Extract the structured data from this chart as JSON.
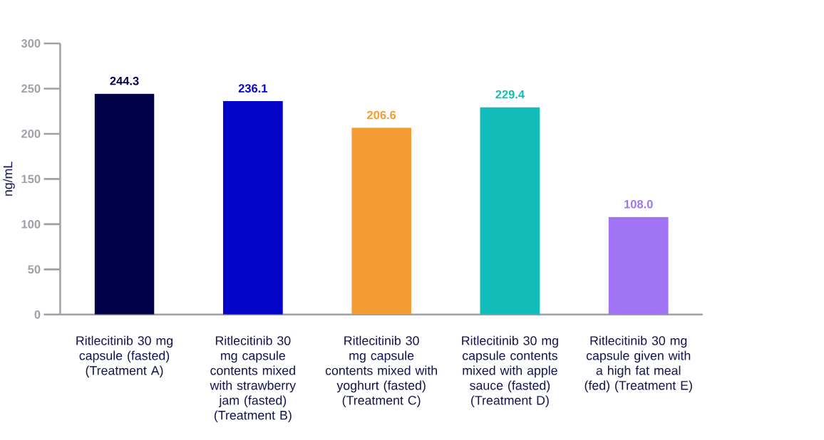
{
  "chart_data": {
    "type": "bar",
    "ylabel": "ng/mL",
    "categories": [
      "Ritlecitinib 30 mg capsule (fasted) (Treatment A)",
      "Ritlecitinib 30 mg capsule contents mixed with strawberry jam (fasted) (Treatment B)",
      "Ritlecitinib 30 mg capsule contents mixed with yoghurt (fasted) (Treatment C)",
      "Ritlecitinib 30 mg capsule contents mixed with apple sauce (fasted) (Treatment D)",
      "Ritlecitinib 30 mg capsule given with a high fat meal (fed) (Treatment E)"
    ],
    "values": [
      244.3,
      236.1,
      206.6,
      229.4,
      108.0
    ],
    "value_labels": [
      "244.3",
      "236.1",
      "206.6",
      "229.4",
      "108.0"
    ],
    "colors": [
      "#02024a",
      "#0505c8",
      "#f29c33",
      "#12bdb9",
      "#a174f5"
    ],
    "ylim": [
      0,
      300
    ],
    "yticks": [
      0,
      50,
      100,
      150,
      200,
      250,
      300
    ],
    "grid": false
  }
}
